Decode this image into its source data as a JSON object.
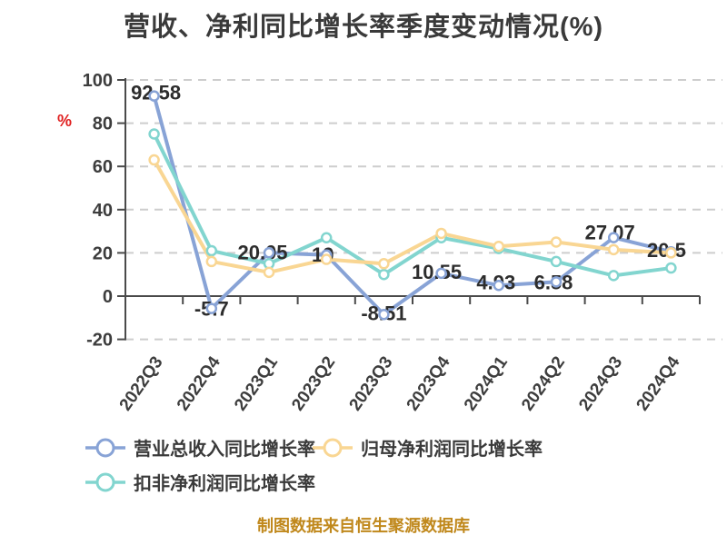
{
  "title": "营收、净利同比增长率季度变动情况(%)",
  "y_axis_label": "%",
  "footer": "制图数据来自恒生聚源数据库",
  "colors": {
    "revenue_series": "#88a3d6",
    "net_profit_series": "#f9d693",
    "non_gaap_series": "#82d5cf",
    "title_text": "#3a3a3a",
    "axis_text": "#3d3d3d",
    "data_label_text": "#2d2d2d",
    "axis_line": "#4a4a4a",
    "gridline": "#cdcdcd",
    "y_unit_label": "#e02020",
    "footer_text": "#c0881c",
    "background": "#ffffff"
  },
  "chart_data": {
    "type": "line",
    "title": "营收、净利同比增长率季度变动情况(%)",
    "xlabel": "",
    "ylabel": "%",
    "categories": [
      "2022Q3",
      "2022Q4",
      "2023Q1",
      "2023Q2",
      "2023Q3",
      "2023Q4",
      "2024Q1",
      "2024Q2",
      "2024Q3",
      "2024Q4"
    ],
    "series": [
      {
        "name": "营业总收入同比增长率",
        "color": "#88a3d6",
        "values": [
          92.58,
          -5.7,
          20.05,
          19,
          -8.51,
          10.55,
          4.93,
          6.58,
          27.07,
          20.5
        ],
        "point_labels": [
          "92.58",
          "-5.7",
          "20.05",
          "19",
          "-8.51",
          "10.55",
          "4.93",
          "6.58",
          "27.07",
          "20.5"
        ]
      },
      {
        "name": "归母净利润同比增长率",
        "color": "#f9d693",
        "values": [
          63,
          16,
          11,
          17,
          15,
          29,
          23,
          25,
          21.5,
          20
        ],
        "point_labels": []
      },
      {
        "name": "扣非净利润同比增长率",
        "color": "#82d5cf",
        "values": [
          75,
          21,
          15,
          27,
          10,
          27,
          22,
          16,
          9.5,
          13
        ],
        "point_labels": []
      }
    ],
    "ylim": [
      -20,
      100
    ],
    "yticks": [
      100,
      80,
      60,
      40,
      20,
      0,
      -20
    ],
    "grid": "horizontal-dashed",
    "legend_position": "bottom-left"
  },
  "legend": {
    "items": [
      {
        "label": "营业总收入同比增长率",
        "color": "#88a3d6"
      },
      {
        "label": "归母净利润同比增长率",
        "color": "#f9d693"
      },
      {
        "label": "扣非净利润同比增长率",
        "color": "#82d5cf"
      }
    ]
  }
}
